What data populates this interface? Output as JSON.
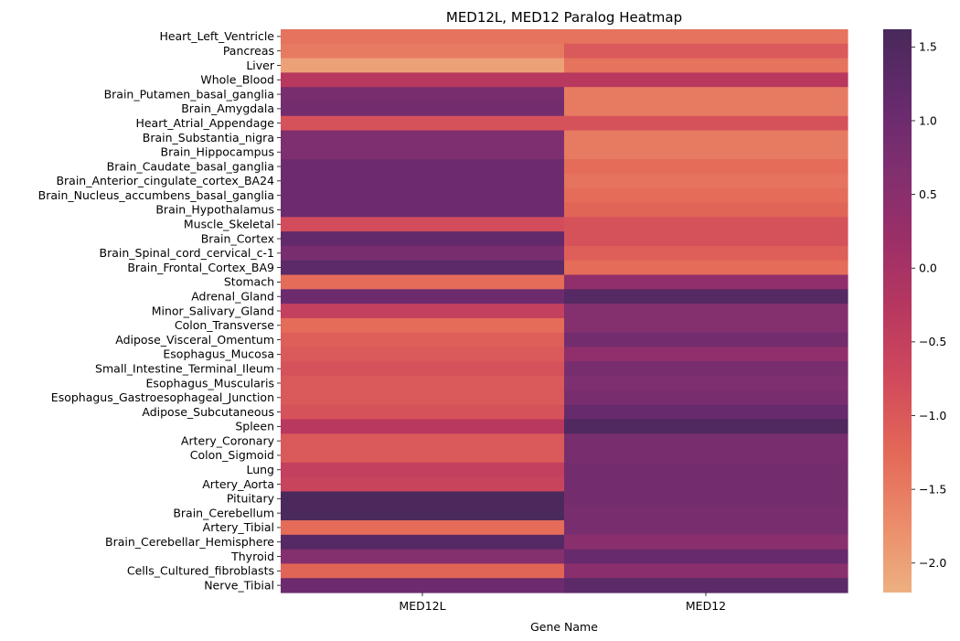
{
  "chart_data": {
    "type": "heatmap",
    "title": "MED12L, MED12 Paralog Heatmap",
    "xlabel": "Gene Name",
    "ylabel": "",
    "columns": [
      "MED12L",
      "MED12"
    ],
    "rows": [
      "Heart_Left_Ventricle",
      "Pancreas",
      "Liver",
      "Whole_Blood",
      "Brain_Putamen_basal_ganglia",
      "Brain_Amygdala",
      "Heart_Atrial_Appendage",
      "Brain_Substantia_nigra",
      "Brain_Hippocampus",
      "Brain_Caudate_basal_ganglia",
      "Brain_Anterior_cingulate_cortex_BA24",
      "Brain_Nucleus_accumbens_basal_ganglia",
      "Brain_Hypothalamus",
      "Muscle_Skeletal",
      "Brain_Cortex",
      "Brain_Spinal_cord_cervical_c-1",
      "Brain_Frontal_Cortex_BA9",
      "Stomach",
      "Adrenal_Gland",
      "Minor_Salivary_Gland",
      "Colon_Transverse",
      "Adipose_Visceral_Omentum",
      "Esophagus_Mucosa",
      "Small_Intestine_Terminal_Ileum",
      "Esophagus_Muscularis",
      "Esophagus_Gastroesophageal_Junction",
      "Adipose_Subcutaneous",
      "Spleen",
      "Artery_Coronary",
      "Colon_Sigmoid",
      "Lung",
      "Artery_Aorta",
      "Pituitary",
      "Brain_Cerebellum",
      "Artery_Tibial",
      "Brain_Cerebellar_Hemisphere",
      "Thyroid",
      "Cells_Cultured_fibroblasts",
      "Nerve_Tibial"
    ],
    "values": [
      [
        -1.4,
        -1.4
      ],
      [
        -1.5,
        -1.0
      ],
      [
        -2.0,
        -1.4
      ],
      [
        -0.3,
        -0.3
      ],
      [
        0.8,
        -1.5
      ],
      [
        0.9,
        -1.5
      ],
      [
        -0.9,
        -0.9
      ],
      [
        0.7,
        -1.5
      ],
      [
        0.7,
        -1.5
      ],
      [
        1.0,
        -1.3
      ],
      [
        1.0,
        -1.4
      ],
      [
        1.0,
        -1.3
      ],
      [
        1.0,
        -1.2
      ],
      [
        -0.8,
        -0.9
      ],
      [
        1.2,
        -0.9
      ],
      [
        0.8,
        -1.1
      ],
      [
        1.3,
        -1.3
      ],
      [
        -1.3,
        0.4
      ],
      [
        1.0,
        1.4
      ],
      [
        -0.5,
        0.6
      ],
      [
        -1.3,
        0.6
      ],
      [
        -1.1,
        0.9
      ],
      [
        -1.0,
        0.4
      ],
      [
        -0.9,
        0.8
      ],
      [
        -1.0,
        0.7
      ],
      [
        -1.0,
        0.8
      ],
      [
        -0.9,
        1.1
      ],
      [
        -0.3,
        1.5
      ],
      [
        -1.0,
        0.8
      ],
      [
        -1.0,
        0.8
      ],
      [
        -0.5,
        0.9
      ],
      [
        -0.6,
        0.9
      ],
      [
        1.55,
        0.9
      ],
      [
        1.55,
        0.8
      ],
      [
        -1.3,
        0.8
      ],
      [
        1.4,
        0.5
      ],
      [
        0.6,
        1.1
      ],
      [
        -1.2,
        0.5
      ],
      [
        1.0,
        1.3
      ]
    ],
    "colorbar": {
      "vmin": -2.2,
      "vmax": 1.62,
      "ticks": [
        -2.0,
        -1.5,
        -1.0,
        -0.5,
        0.0,
        0.5,
        1.0,
        1.5
      ],
      "tick_labels": [
        "−2.0",
        "−1.5",
        "−1.0",
        "−0.5",
        "0.0",
        "0.5",
        "1.0",
        "1.5"
      ],
      "colormap": "flare",
      "stops": [
        "#edb081",
        "#eb8b6a",
        "#e36857",
        "#d14a5c",
        "#b8385f",
        "#9c2f68",
        "#802f6f",
        "#652a6d",
        "#48295a"
      ]
    },
    "grid": false,
    "legend": "colorbar-right"
  }
}
